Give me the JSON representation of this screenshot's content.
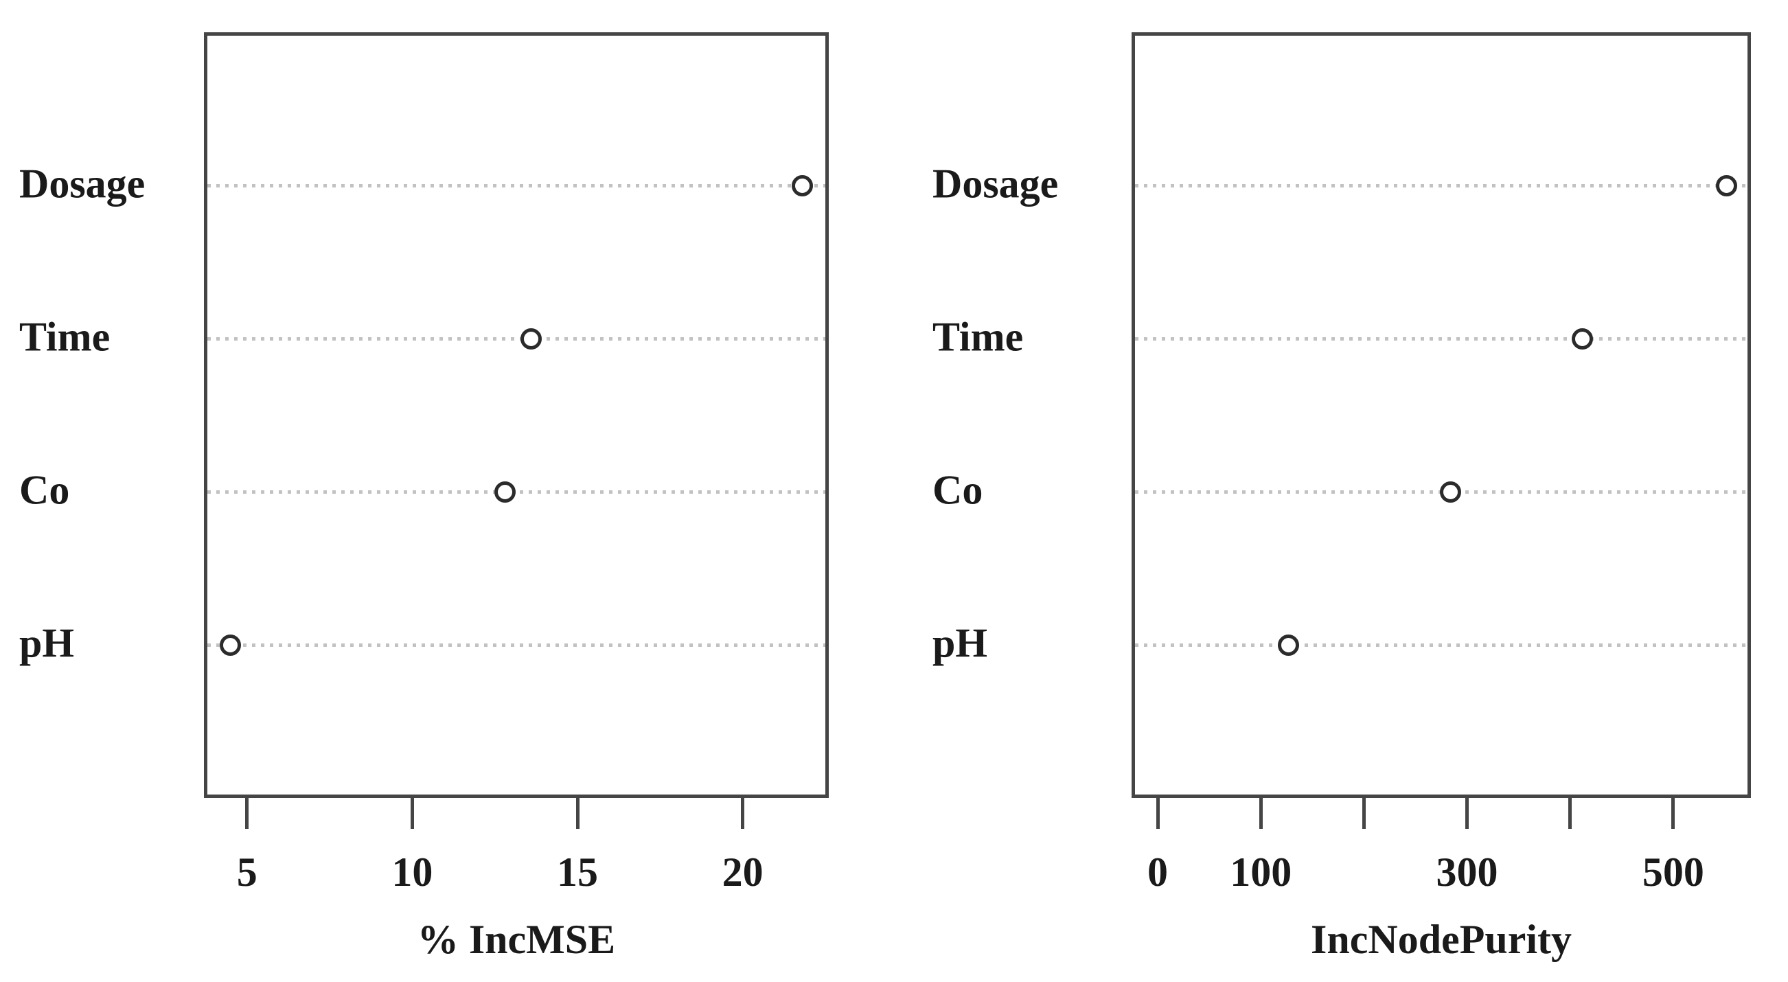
{
  "figure": {
    "background_color": "#ffffff",
    "text_color": "#1a1a1a",
    "axis_color": "#454545",
    "grid_color": "#c2c2c2",
    "point_stroke_color": "#2b2b2b",
    "point_fill_color": "#ffffff"
  },
  "chart_data": [
    {
      "type": "scatter",
      "variant": "dot-chart",
      "title": "",
      "xlabel": "% IncMSE",
      "ylabel": "",
      "categories": [
        "Dosage",
        "Time",
        "Co",
        "pH"
      ],
      "values": [
        21.8,
        13.6,
        12.8,
        4.5
      ],
      "xlim": [
        3.8,
        22.5
      ],
      "xticks": [
        5,
        10,
        15,
        20
      ],
      "xtick_labels": [
        "5",
        "10",
        "15",
        "20"
      ],
      "grid": "dotted-horizontal-rows",
      "legend": "none",
      "marker": "open-circle"
    },
    {
      "type": "scatter",
      "variant": "dot-chart",
      "title": "",
      "xlabel": "IncNodePurity",
      "ylabel": "",
      "categories": [
        "Dosage",
        "Time",
        "Co",
        "pH"
      ],
      "values": [
        552,
        412,
        284,
        127
      ],
      "xlim": [
        -22,
        572
      ],
      "xticks": [
        0,
        100,
        200,
        300,
        400,
        500
      ],
      "xtick_labels": [
        "0",
        "100",
        "",
        "300",
        "",
        "500"
      ],
      "grid": "dotted-horizontal-rows",
      "legend": "none",
      "marker": "open-circle"
    }
  ]
}
